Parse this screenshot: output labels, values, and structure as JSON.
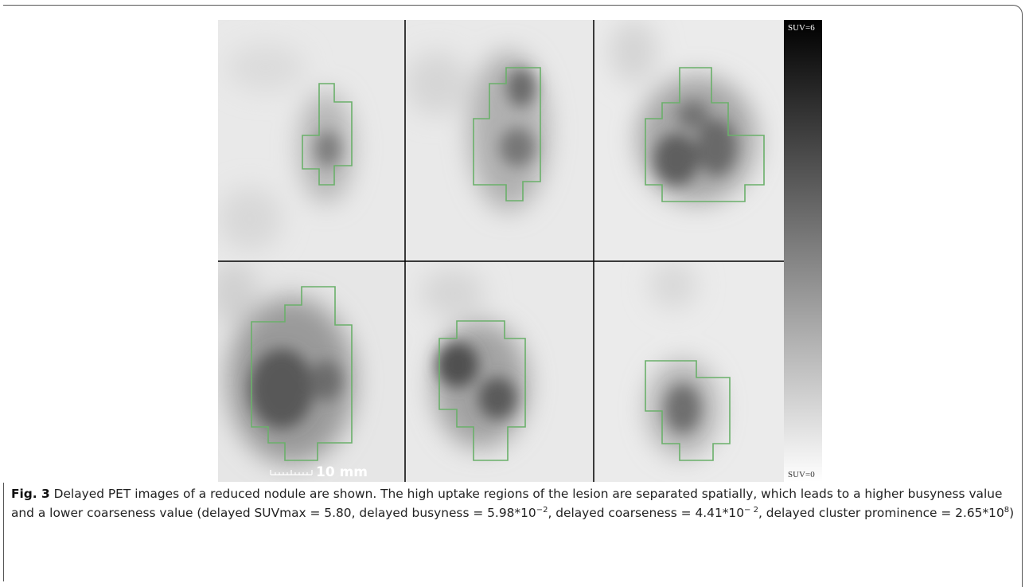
{
  "figure": {
    "label": "Fig. 3",
    "caption": [
      "Delayed PET images of a reduced nodule are shown. The high uptake regions of the lesion are separated spatially, which leads to a higher busyness value and a lower coarseness value (delayed SUVmax = 5.80, delayed busyness = 5.98*10",
      "−2",
      ", delayed coarseness = 4.41*10",
      "− 2",
      ", delayed cluster prominence = 2.65*10",
      "8",
      ")"
    ],
    "colorbar": {
      "max_label": "SUV=6",
      "min_label": "SUV=0"
    },
    "scale_bar": {
      "label": "10 mm"
    }
  }
}
